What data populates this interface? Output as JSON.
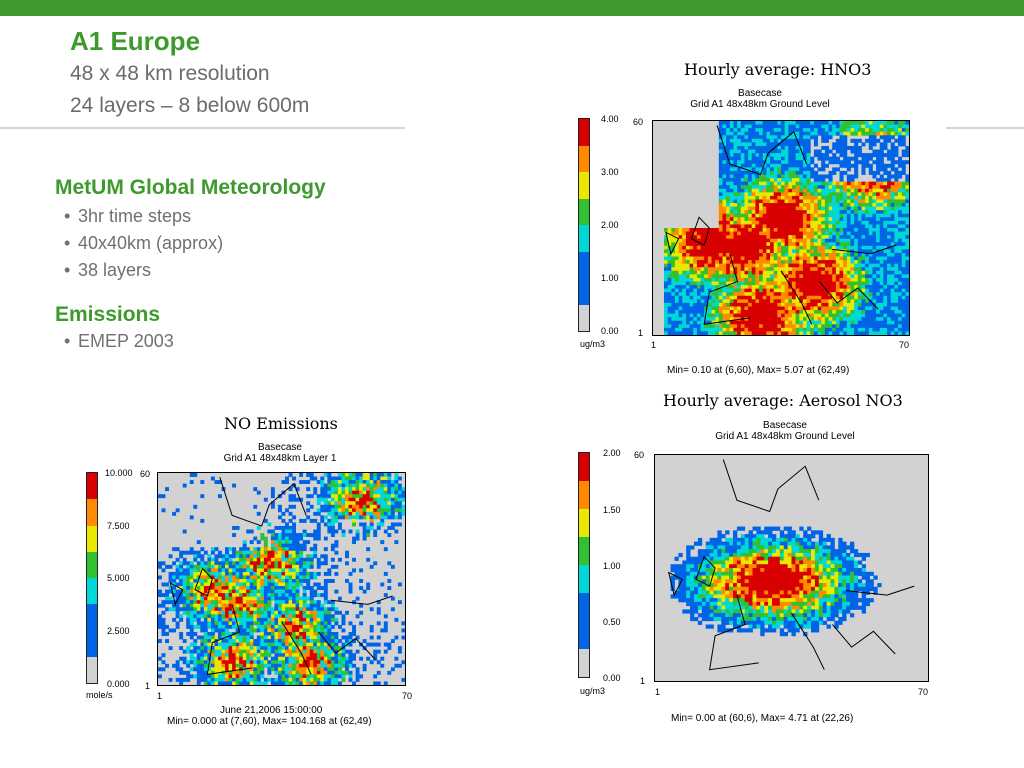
{
  "slide": {
    "title": "A1 Europe",
    "subtitle_lines": [
      "48 x 48 km resolution",
      "24 layers – 8 below 600m"
    ],
    "sections": [
      {
        "heading": "MetUM Global Meteorology",
        "bullets": [
          "3hr time steps",
          "40x40km (approx)",
          "38 layers"
        ]
      },
      {
        "heading": "Emissions",
        "bullets": [
          "EMEP 2003"
        ]
      }
    ],
    "accent_color": "#3f9a2e"
  },
  "panels": [
    {
      "title": "Hourly average: HNO3",
      "case_label": "Basecase",
      "grid_label": "Grid A1 48x48km Ground Level",
      "scale_ticks": [
        "4.00",
        "3.00",
        "2.00",
        "1.00",
        "0.00"
      ],
      "unit": "ug/m3",
      "axis": {
        "y_top": "60",
        "y_bottom": "1",
        "x_left": "1",
        "x_right": "70"
      },
      "date": "",
      "stats": "Min=    0.10 at (6,60), Max=    5.07 at (62,49)"
    },
    {
      "title": "Hourly average: Aerosol NO3",
      "case_label": "Basecase",
      "grid_label": "Grid A1 48x48km Ground Level",
      "scale_ticks": [
        "2.00",
        "1.50",
        "1.00",
        "0.50",
        "0.00"
      ],
      "unit": "ug/m3",
      "axis": {
        "y_top": "60",
        "y_bottom": "1",
        "x_left": "1",
        "x_right": "70"
      },
      "date": "",
      "stats": "Min=    0.00 at (60,6), Max=    4.71 at (22,26)"
    },
    {
      "title": "NO Emissions",
      "case_label": "Basecase",
      "grid_label": "Grid A1 48x48km Layer 1",
      "scale_ticks": [
        "10.000",
        "7.500",
        "5.000",
        "2.500",
        "0.000"
      ],
      "unit": "mole/s",
      "axis": {
        "y_top": "60",
        "y_bottom": "1",
        "x_left": "1",
        "x_right": "70"
      },
      "date": "June 21,2006 15:00:00",
      "stats": "Min=   0.000 at (7,60), Max= 104.168 at (62,49)"
    }
  ],
  "palette": [
    "#d80000",
    "#ff8a00",
    "#e8e800",
    "#30c030",
    "#00d8d8",
    "#0064e6",
    "#d2d2d2"
  ]
}
